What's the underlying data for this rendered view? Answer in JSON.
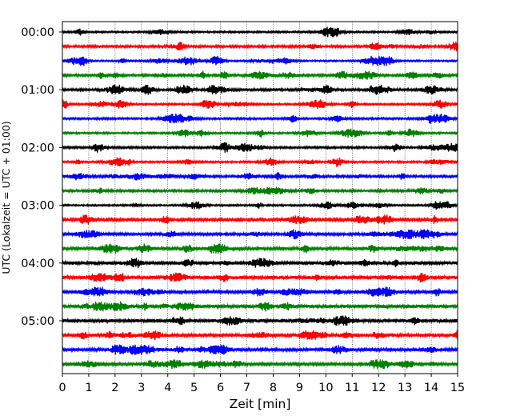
{
  "chart_data": {
    "type": "line",
    "title": "",
    "subtitle": "",
    "xlabel": "Zeit  [min]",
    "ylabel": "UTC (Lokalzeit = UTC + 01:00)",
    "xlim": [
      0,
      15
    ],
    "x_ticks": [
      "0",
      "1",
      "2",
      "3",
      "4",
      "5",
      "6",
      "7",
      "8",
      "9",
      "10",
      "11",
      "12",
      "13",
      "14",
      "15"
    ],
    "y_tick_labels": [
      "00:00",
      "01:00",
      "02:00",
      "03:00",
      "04:00",
      "05:00"
    ],
    "y_tick_rows": [
      0,
      4,
      8,
      12,
      16,
      20
    ],
    "grid": "vertical-dotted",
    "legend": "none",
    "trace_minutes_each": 15,
    "trace_count": 24,
    "trace_colors": [
      "#000000",
      "#ff0000",
      "#0000ff",
      "#008000"
    ],
    "trace_start_times": [
      "00:00",
      "00:15",
      "00:30",
      "00:45",
      "01:00",
      "01:15",
      "01:30",
      "01:45",
      "02:00",
      "02:15",
      "02:30",
      "02:45",
      "03:00",
      "03:15",
      "03:30",
      "03:45",
      "04:00",
      "04:15",
      "04:30",
      "04:45",
      "05:00",
      "05:15",
      "05:30",
      "05:45"
    ]
  }
}
